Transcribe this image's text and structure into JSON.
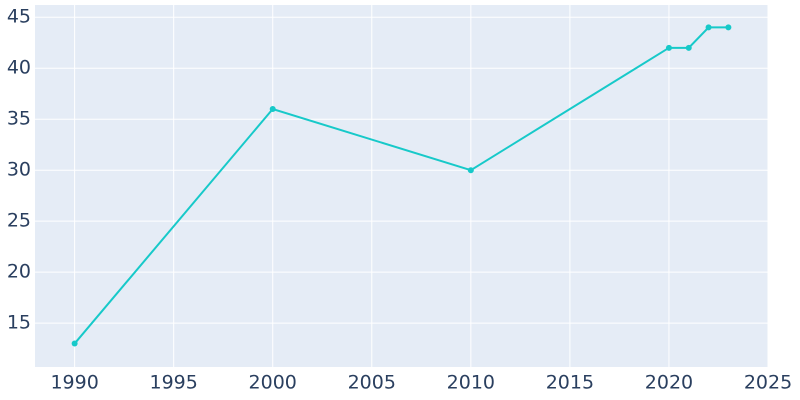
{
  "chart_data": {
    "type": "line",
    "x": [
      1990,
      2000,
      2010,
      2020,
      2021,
      2022,
      2023
    ],
    "series": [
      {
        "color": "#17c9c9",
        "values": [
          13,
          36,
          30,
          42,
          42,
          44,
          44
        ]
      }
    ],
    "xlim": [
      1988,
      2025
    ],
    "xticks": [
      1990,
      1995,
      2000,
      2005,
      2010,
      2015,
      2020,
      2025
    ],
    "ylim": [
      10.7,
      46.2
    ],
    "yticks": [
      15,
      20,
      25,
      30,
      35,
      40,
      45
    ],
    "grid": true,
    "background": "#e5ecf6"
  }
}
